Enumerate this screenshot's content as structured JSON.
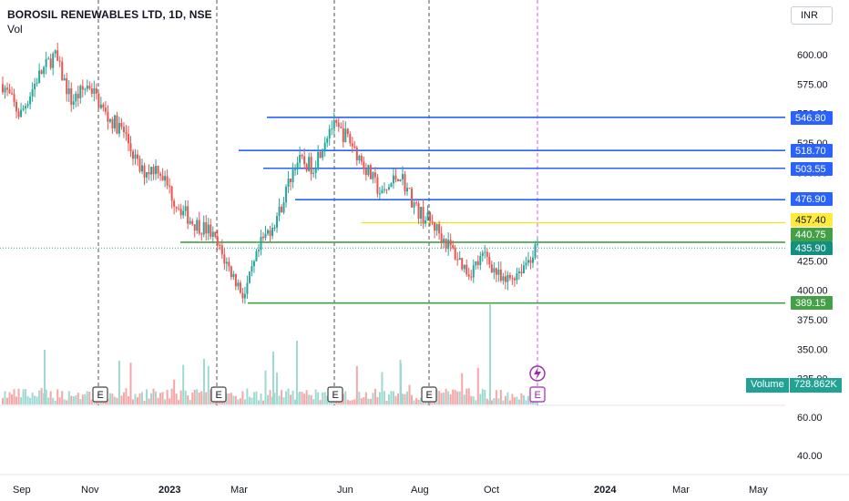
{
  "header": {
    "title": "BOROSIL RENEWABLES LTD, 1D, NSE",
    "indicator": "Vol"
  },
  "currency_button": {
    "label": "INR"
  },
  "colors": {
    "up": "#26a69a",
    "down": "#ef5350",
    "blue_line": "#2962ff",
    "yellow_line": "#f5e300",
    "green_line": "#43a047",
    "event_line": "#555555",
    "last_line": "#d05ce3"
  },
  "price_axis": {
    "ticks": [
      "600.00",
      "575.00",
      "550.00",
      "525.00",
      "500.00",
      "475.00",
      "450.00",
      "425.00",
      "400.00",
      "375.00",
      "350.00",
      "325.00"
    ],
    "tick_values": [
      600,
      575,
      550,
      525,
      500,
      475,
      450,
      425,
      400,
      375,
      350,
      325
    ],
    "volume_ticks": [
      "60.00",
      "40.00"
    ]
  },
  "time_axis": {
    "labels": [
      "Sep",
      "Nov",
      "2023",
      "Mar",
      "Jun",
      "Aug",
      "Oct",
      "2024",
      "Mar",
      "May"
    ]
  },
  "levels": [
    {
      "label": "546.80",
      "value": 546.8,
      "kind": "blue"
    },
    {
      "label": "518.70",
      "value": 518.7,
      "kind": "blue"
    },
    {
      "label": "503.55",
      "value": 503.55,
      "kind": "blue"
    },
    {
      "label": "476.90",
      "value": 476.9,
      "kind": "blue"
    },
    {
      "label": "457.40",
      "value": 457.4,
      "kind": "yellow"
    },
    {
      "label": "440.75",
      "value": 440.75,
      "kind": "green"
    },
    {
      "label": "389.15",
      "value": 389.15,
      "kind": "green"
    }
  ],
  "last_price": {
    "label": "435.90",
    "value": 435.9
  },
  "volume_badge": {
    "label": "Volume",
    "value": "728.862K"
  },
  "events": [
    {
      "label": "E"
    },
    {
      "label": "E"
    },
    {
      "label": "E"
    },
    {
      "label": "E"
    },
    {
      "label": "E"
    }
  ],
  "chart_data": {
    "type": "candlestick",
    "title": "BOROSIL RENEWABLES LTD, 1D, NSE",
    "x_labels": [
      "Sep",
      "Nov",
      "2023",
      "Mar",
      "Jun",
      "Aug",
      "Oct",
      "2024",
      "Mar",
      "May"
    ],
    "ylim": [
      325,
      625
    ],
    "price_path": [
      [
        "Sep",
        575
      ],
      [
        "Sep",
        548
      ],
      [
        "Oct",
        580
      ],
      [
        "Oct",
        600
      ],
      [
        "Nov",
        560
      ],
      [
        "Nov",
        575
      ],
      [
        "Dec",
        548
      ],
      [
        "Dec",
        535
      ],
      [
        "Jan",
        500
      ],
      [
        "Jan",
        505
      ],
      [
        "Feb",
        475
      ],
      [
        "Feb",
        458
      ],
      [
        "Mar",
        450
      ],
      [
        "Mar",
        422
      ],
      [
        "Mar",
        395
      ],
      [
        "Apr",
        440
      ],
      [
        "Apr",
        465
      ],
      [
        "May",
        510
      ],
      [
        "May",
        505
      ],
      [
        "Jun",
        540
      ],
      [
        "Jun",
        530
      ],
      [
        "Jul",
        505
      ],
      [
        "Jul",
        480
      ],
      [
        "Aug",
        500
      ],
      [
        "Aug",
        468
      ],
      [
        "Sep",
        455
      ],
      [
        "Sep",
        435
      ],
      [
        "Oct",
        415
      ],
      [
        "Oct",
        430
      ],
      [
        "Oct",
        405
      ],
      [
        "Nov",
        418
      ],
      [
        "Nov",
        435.9
      ]
    ],
    "annotated_levels": [
      546.8,
      518.7,
      503.55,
      476.9,
      457.4,
      440.75,
      389.15
    ],
    "last_close": 435.9,
    "volume_last": "728.862K"
  }
}
